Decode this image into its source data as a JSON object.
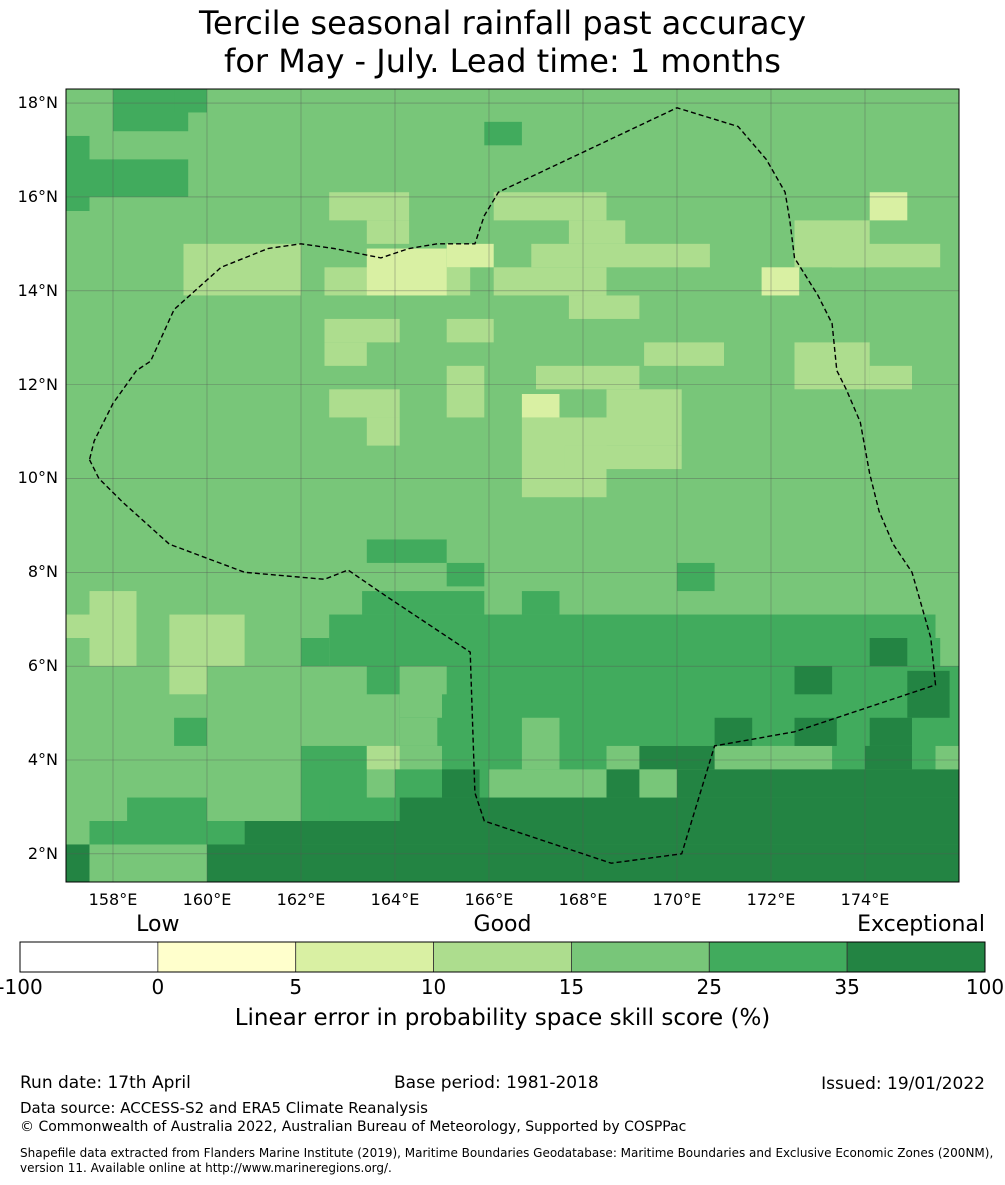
{
  "title_line1": "Tercile seasonal rainfall past accuracy",
  "title_line2": "for May - July. Lead time: 1 months",
  "map": {
    "lon_range": [
      157,
      176
    ],
    "lat_range": [
      1.4,
      18.3
    ],
    "lat_labels": [
      "18°N",
      "16°N",
      "14°N",
      "12°N",
      "10°N",
      "8°N",
      "6°N",
      "4°N",
      "2°N"
    ],
    "lon_labels": [
      "158°E",
      "160°E",
      "162°E",
      "164°E",
      "166°E",
      "168°E",
      "170°E",
      "172°E",
      "174°E"
    ],
    "colors": {
      "c2": "#d9f0a3",
      "c3": "#addd8e",
      "c4": "#78c679",
      "c5": "#41ab5d",
      "c6": "#238443"
    },
    "grid": [
      "44454444444444444444444444444444444444444444444",
      "44454444444444444444444444444444444444444444444",
      "44444444444444444444444444444444444444444444444",
      "44444444444444444444444444444444444444444444444",
      "45554444444444444444444444444444444444444444444",
      "45554444444444444444444444444444444444444444444",
      "44444444444444444444444444444444444444444444444",
      "44444444444444444444444444444444444444444444444",
      "44444444444444444444444444444444444444444444444",
      "44444444444444444444444444444444444444444444444",
      "44444444444444444444444444444444444444444444444",
      "44444444444444444444444444444444444444444444444",
      "44444444444444444444444444444444444444444444444",
      "44444444444444444444444444444444444444444444444",
      "44444444444444444444444444444444444444444444444",
      "44444444444444444444444444444444444444444444444",
      "44444444444444444444444444444444444444444444444",
      "44444444444444444444444444444444444444444444444",
      "44444444444444444444444444444444444444444444444",
      "44444444444444444444444444444444444444444444444",
      "44444444444444444444444444444444444444444444444",
      "44444444444444444444444444444444444444444444444",
      "44444444444444444444444444444444444444444444444",
      "44444444444444444444444444444444444444444444444",
      "44444444444444444444444444444444444444444444444",
      "44444444444444444444444444444444444444444444444",
      "44444444444444444444444444444444444444444444444",
      "44444444444444444444444444444444444444444444444",
      "44444444444444444444444444444444444444444444444",
      "44444444444444444444444444444444444444444444444",
      "44444444444444444444444444444444444444444444444"
    ],
    "patches": [
      {
        "v": "c5",
        "lon": [
          158,
          159.6
        ],
        "lat": [
          17.4,
          18.3
        ]
      },
      {
        "v": "c5",
        "lon": [
          157,
          157.5
        ],
        "lat": [
          15.7,
          17.3
        ]
      },
      {
        "v": "c5",
        "lon": [
          157.5,
          159.6
        ],
        "lat": [
          16.0,
          16.8
        ]
      },
      {
        "v": "c5",
        "lon": [
          159.3,
          160.0
        ],
        "lat": [
          17.8,
          18.3
        ]
      },
      {
        "v": "c5",
        "lon": [
          165.9,
          166.7
        ],
        "lat": [
          17.1,
          17.6
        ]
      },
      {
        "v": "c3",
        "lon": [
          162.6,
          164.3
        ],
        "lat": [
          15.5,
          16.1
        ]
      },
      {
        "v": "c3",
        "lon": [
          166.1,
          168.5
        ],
        "lat": [
          15.5,
          16.1
        ]
      },
      {
        "v": "c3",
        "lon": [
          163.4,
          164.3
        ],
        "lat": [
          15.0,
          15.5
        ]
      },
      {
        "v": "c3",
        "lon": [
          159.5,
          162.0
        ],
        "lat": [
          13.9,
          15.0
        ]
      },
      {
        "v": "c3",
        "lon": [
          162.5,
          165.6
        ],
        "lat": [
          13.9,
          14.5
        ]
      },
      {
        "v": "c2",
        "lon": [
          163.4,
          165.1
        ],
        "lat": [
          13.9,
          14.9
        ]
      },
      {
        "v": "c2",
        "lon": [
          165.1,
          166.1
        ],
        "lat": [
          14.5,
          15.0
        ]
      },
      {
        "v": "c3",
        "lon": [
          166.9,
          170.7
        ],
        "lat": [
          14.5,
          15.0
        ]
      },
      {
        "v": "c3",
        "lon": [
          167.7,
          168.9
        ],
        "lat": [
          15.0,
          15.5
        ]
      },
      {
        "v": "c3",
        "lon": [
          166.1,
          168.5
        ],
        "lat": [
          13.9,
          14.5
        ]
      },
      {
        "v": "c3",
        "lon": [
          167.7,
          169.2
        ],
        "lat": [
          13.4,
          13.9
        ]
      },
      {
        "v": "c3",
        "lon": [
          172.5,
          174.1
        ],
        "lat": [
          14.5,
          15.5
        ]
      },
      {
        "v": "c2",
        "lon": [
          174.1,
          174.9
        ],
        "lat": [
          15.5,
          16.1
        ]
      },
      {
        "v": "c3",
        "lon": [
          173.3,
          175.6
        ],
        "lat": [
          14.5,
          15.0
        ]
      },
      {
        "v": "c2",
        "lon": [
          171.8,
          172.6
        ],
        "lat": [
          13.9,
          14.5
        ]
      },
      {
        "v": "c3",
        "lon": [
          162.5,
          164.1
        ],
        "lat": [
          12.9,
          13.4
        ]
      },
      {
        "v": "c3",
        "lon": [
          162.5,
          163.4
        ],
        "lat": [
          12.4,
          12.9
        ]
      },
      {
        "v": "c3",
        "lon": [
          165.1,
          166.1
        ],
        "lat": [
          12.9,
          13.4
        ]
      },
      {
        "v": "c3",
        "lon": [
          172.5,
          174.1
        ],
        "lat": [
          11.9,
          12.9
        ]
      },
      {
        "v": "c3",
        "lon": [
          174.1,
          175.0
        ],
        "lat": [
          11.9,
          12.4
        ]
      },
      {
        "v": "c3",
        "lon": [
          169.3,
          171.0
        ],
        "lat": [
          12.4,
          12.9
        ]
      },
      {
        "v": "c3",
        "lon": [
          162.6,
          164.1
        ],
        "lat": [
          11.3,
          11.9
        ]
      },
      {
        "v": "c3",
        "lon": [
          163.4,
          164.1
        ],
        "lat": [
          10.7,
          11.3
        ]
      },
      {
        "v": "c3",
        "lon": [
          165.1,
          165.9
        ],
        "lat": [
          11.3,
          12.4
        ]
      },
      {
        "v": "c3",
        "lon": [
          167.0,
          169.2
        ],
        "lat": [
          11.9,
          12.4
        ]
      },
      {
        "v": "c3",
        "lon": [
          168.5,
          170.1
        ],
        "lat": [
          10.7,
          11.9
        ]
      },
      {
        "v": "c3",
        "lon": [
          166.7,
          168.5
        ],
        "lat": [
          9.6,
          11.3
        ]
      },
      {
        "v": "c3",
        "lon": [
          167.6,
          170.1
        ],
        "lat": [
          10.2,
          10.7
        ]
      },
      {
        "v": "c2",
        "lon": [
          166.7,
          167.5
        ],
        "lat": [
          11.3,
          11.8
        ]
      },
      {
        "v": "c5",
        "lon": [
          163.4,
          165.1
        ],
        "lat": [
          8.2,
          8.7
        ]
      },
      {
        "v": "c5",
        "lon": [
          165.1,
          165.9
        ],
        "lat": [
          7.7,
          8.2
        ]
      },
      {
        "v": "c5",
        "lon": [
          170.0,
          170.8
        ],
        "lat": [
          7.6,
          8.2
        ]
      },
      {
        "v": "c3",
        "lon": [
          157,
          158.5
        ],
        "lat": [
          6.6,
          7.1
        ]
      },
      {
        "v": "c3",
        "lon": [
          157.5,
          158.5
        ],
        "lat": [
          6.0,
          7.6
        ]
      },
      {
        "v": "c3",
        "lon": [
          159.2,
          160.8
        ],
        "lat": [
          6.0,
          7.1
        ]
      },
      {
        "v": "c3",
        "lon": [
          159.2,
          160.0
        ],
        "lat": [
          5.4,
          6.0
        ]
      },
      {
        "v": "c5",
        "lon": [
          162.6,
          175.5
        ],
        "lat": [
          6.0,
          7.1
        ]
      },
      {
        "v": "c5",
        "lon": [
          164.1,
          175.5
        ],
        "lat": [
          4.3,
          6.6
        ]
      },
      {
        "v": "c5",
        "lon": [
          163.3,
          165.9
        ],
        "lat": [
          7.1,
          7.6
        ]
      },
      {
        "v": "c5",
        "lon": [
          166.7,
          167.5
        ],
        "lat": [
          7.1,
          7.6
        ]
      },
      {
        "v": "c5",
        "lon": [
          162.0,
          162.6
        ],
        "lat": [
          6.0,
          6.6
        ]
      },
      {
        "v": "c5",
        "lon": [
          163.4,
          164.1
        ],
        "lat": [
          5.4,
          6.0
        ]
      },
      {
        "v": "c4",
        "lon": [
          164.1,
          165.1
        ],
        "lat": [
          4.9,
          6.0
        ]
      },
      {
        "v": "c4",
        "lon": [
          164.1,
          164.9
        ],
        "lat": [
          4.3,
          4.9
        ]
      },
      {
        "v": "c5",
        "lon": [
          165.0,
          166.0
        ],
        "lat": [
          3.2,
          5.4
        ]
      },
      {
        "v": "c5",
        "lon": [
          166.0,
          168.5
        ],
        "lat": [
          3.8,
          5.4
        ]
      },
      {
        "v": "c4",
        "lon": [
          166.7,
          167.5
        ],
        "lat": [
          3.8,
          4.9
        ]
      },
      {
        "v": "c5",
        "lon": [
          175.5,
          176
        ],
        "lat": [
          3.2,
          6.6
        ]
      },
      {
        "v": "c5",
        "lon": [
          173.3,
          176
        ],
        "lat": [
          3.2,
          4.9
        ]
      },
      {
        "v": "c5",
        "lon": [
          159.3,
          160.0
        ],
        "lat": [
          4.3,
          4.9
        ]
      },
      {
        "v": "c5",
        "lon": [
          162.0,
          163.4
        ],
        "lat": [
          2.7,
          4.3
        ]
      },
      {
        "v": "c5",
        "lon": [
          162.6,
          164.9
        ],
        "lat": [
          2.7,
          3.2
        ]
      },
      {
        "v": "c3",
        "lon": [
          163.4,
          164.1
        ],
        "lat": [
          3.8,
          4.3
        ]
      },
      {
        "v": "c5",
        "lon": [
          164.0,
          165.0
        ],
        "lat": [
          3.2,
          3.8
        ]
      },
      {
        "v": "c5",
        "lon": [
          157.5,
          160.0
        ],
        "lat": [
          2.2,
          2.7
        ]
      },
      {
        "v": "c5",
        "lon": [
          158.3,
          160.0
        ],
        "lat": [
          2.7,
          3.2
        ]
      },
      {
        "v": "c5",
        "lon": [
          160.0,
          160.8
        ],
        "lat": [
          2.2,
          2.7
        ]
      },
      {
        "v": "c6",
        "lon": [
          157,
          157.5
        ],
        "lat": [
          1.4,
          2.2
        ]
      },
      {
        "v": "c6",
        "lon": [
          160.8,
          176
        ],
        "lat": [
          2.2,
          2.7
        ]
      },
      {
        "v": "c6",
        "lon": [
          160.0,
          176
        ],
        "lat": [
          1.4,
          2.2
        ]
      },
      {
        "v": "c6",
        "lon": [
          164.1,
          165.0
        ],
        "lat": [
          2.7,
          3.2
        ]
      },
      {
        "v": "c6",
        "lon": [
          165.0,
          176
        ],
        "lat": [
          2.7,
          3.2
        ]
      },
      {
        "v": "c6",
        "lon": [
          165.0,
          165.8
        ],
        "lat": [
          3.2,
          3.8
        ]
      },
      {
        "v": "c6",
        "lon": [
          168.5,
          176
        ],
        "lat": [
          3.2,
          3.8
        ]
      },
      {
        "v": "c6",
        "lon": [
          169.2,
          170.8
        ],
        "lat": [
          3.8,
          4.3
        ]
      },
      {
        "v": "c4",
        "lon": [
          169.2,
          170.0
        ],
        "lat": [
          3.2,
          3.8
        ]
      },
      {
        "v": "c4",
        "lon": [
          175.5,
          176
        ],
        "lat": [
          3.8,
          4.3
        ]
      },
      {
        "v": "c6",
        "lon": [
          174.0,
          175.0
        ],
        "lat": [
          3.8,
          4.3
        ]
      },
      {
        "v": "c6",
        "lon": [
          170.8,
          171.6
        ],
        "lat": [
          4.3,
          4.9
        ]
      },
      {
        "v": "c6",
        "lon": [
          172.5,
          173.4
        ],
        "lat": [
          4.3,
          4.9
        ]
      },
      {
        "v": "c6",
        "lon": [
          174.1,
          175.0
        ],
        "lat": [
          4.3,
          4.9
        ]
      },
      {
        "v": "c6",
        "lon": [
          172.5,
          173.3
        ],
        "lat": [
          5.4,
          6.0
        ]
      },
      {
        "v": "c6",
        "lon": [
          174.1,
          174.9
        ],
        "lat": [
          6.0,
          6.6
        ]
      },
      {
        "v": "c6",
        "lon": [
          174.9,
          175.8
        ],
        "lat": [
          4.9,
          5.9
        ]
      },
      {
        "v": "c4",
        "lon": [
          175.6,
          176
        ],
        "lat": [
          6.0,
          7.1
        ]
      },
      {
        "v": "c4",
        "lon": [
          176,
          176
        ],
        "lat": [
          6.6,
          7.1
        ]
      }
    ],
    "boundary": [
      [
        157.5,
        10.4
      ],
      [
        157.7,
        10.0
      ],
      [
        158.2,
        9.5
      ],
      [
        159.2,
        8.6
      ],
      [
        160.8,
        8.0
      ],
      [
        162.5,
        7.85
      ],
      [
        163.0,
        8.05
      ],
      [
        163.8,
        7.5
      ],
      [
        165.6,
        6.3
      ],
      [
        165.7,
        3.3
      ],
      [
        165.9,
        2.7
      ],
      [
        168.6,
        1.8
      ],
      [
        170.1,
        2.0
      ],
      [
        170.8,
        4.3
      ],
      [
        172.5,
        4.6
      ],
      [
        175.5,
        5.6
      ],
      [
        175.4,
        6.6
      ],
      [
        175.0,
        8.0
      ],
      [
        174.6,
        8.6
      ],
      [
        174.3,
        9.3
      ],
      [
        174.1,
        10.1
      ],
      [
        173.9,
        11.2
      ],
      [
        173.6,
        11.9
      ],
      [
        173.4,
        12.3
      ],
      [
        173.3,
        13.3
      ],
      [
        173.0,
        13.9
      ],
      [
        172.5,
        14.7
      ],
      [
        172.4,
        15.5
      ],
      [
        172.3,
        16.1
      ],
      [
        171.9,
        16.8
      ],
      [
        171.3,
        17.5
      ],
      [
        170.0,
        17.9
      ],
      [
        166.2,
        16.1
      ],
      [
        165.9,
        15.6
      ],
      [
        165.7,
        15.0
      ],
      [
        164.9,
        15.0
      ],
      [
        164.3,
        14.9
      ],
      [
        163.7,
        14.7
      ],
      [
        162.7,
        14.9
      ],
      [
        162.0,
        15.0
      ],
      [
        161.3,
        14.9
      ],
      [
        160.3,
        14.5
      ],
      [
        159.3,
        13.6
      ],
      [
        158.8,
        12.5
      ],
      [
        158.5,
        12.3
      ],
      [
        158.0,
        11.6
      ],
      [
        157.6,
        10.8
      ],
      [
        157.5,
        10.4
      ]
    ]
  },
  "colorbar": {
    "categories": [
      {
        "label": "Low",
        "at": 1
      },
      {
        "label": "Good",
        "at": 3.5
      },
      {
        "label": "Exceptional",
        "at": 6.5
      }
    ],
    "ticks": [
      "-100",
      "0",
      "5",
      "10",
      "15",
      "25",
      "35",
      "100"
    ],
    "colors": [
      "#ffffff",
      "#ffffcc",
      "#d9f0a3",
      "#addd8e",
      "#78c679",
      "#41ab5d",
      "#238443"
    ],
    "title": "Linear error in probability space skill score (%)"
  },
  "footer": {
    "run_date": "Run date: 17th April",
    "base_period": "Base period: 1981-2018",
    "issued": "Issued: 19/01/2022",
    "data_source": "Data source: ACCESS-S2 and ERA5 Climate Reanalysis",
    "copyright": "© Commonwealth of Australia 2022, Australian Bureau of Meteorology, Supported by COSPPac",
    "shapefile": "Shapefile data extracted from Flanders Marine Institute (2019), Maritime Boundaries Geodatabase: Maritime Boundaries and Exclusive Economic Zones (200NM), version 11. Available online at http://www.marineregions.org/."
  }
}
